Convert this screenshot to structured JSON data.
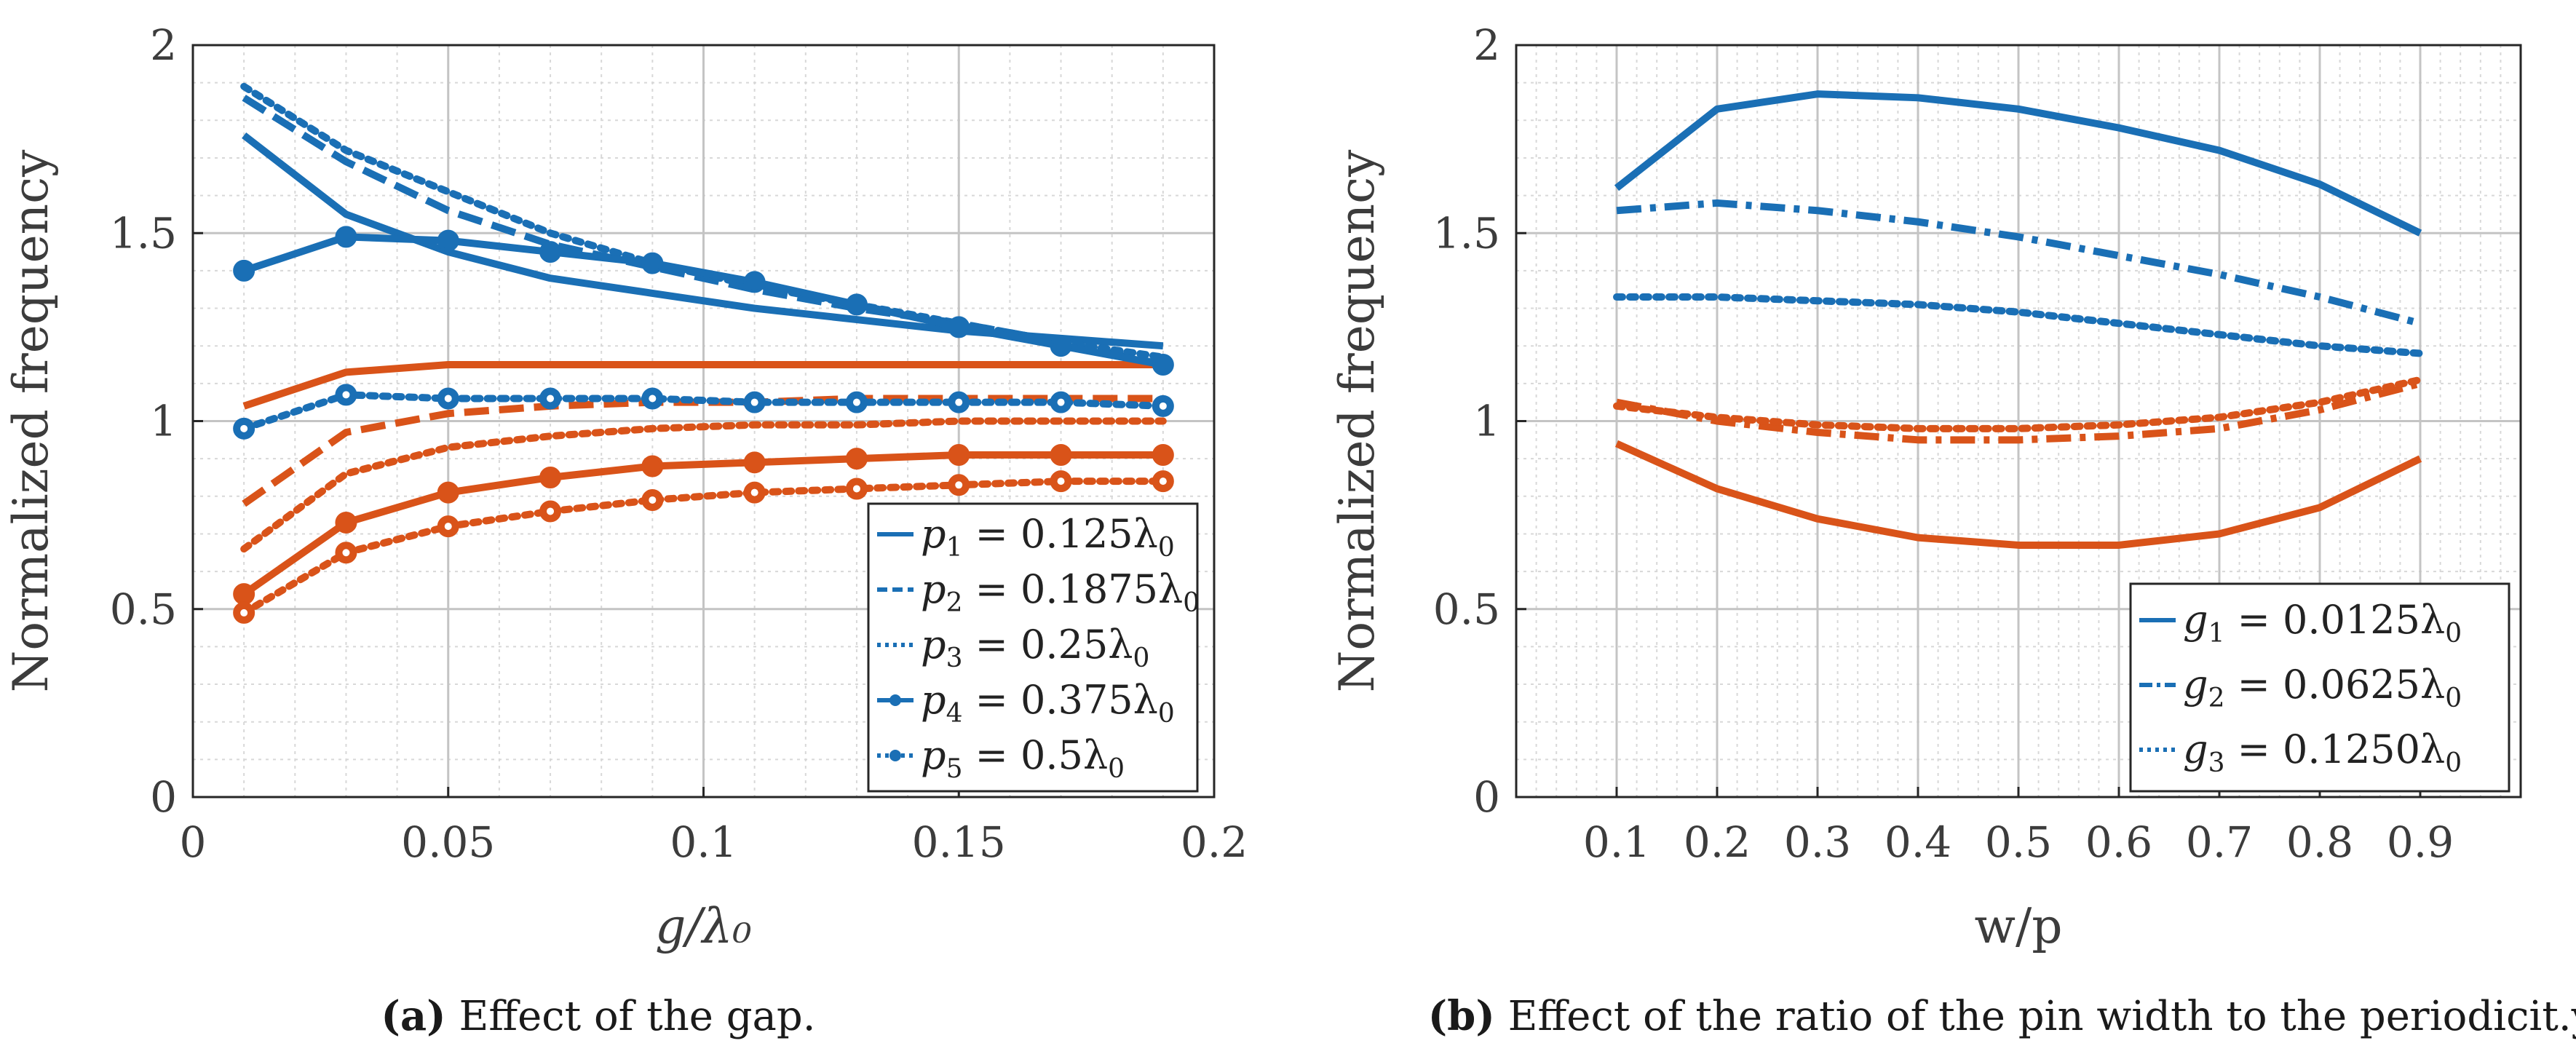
{
  "colors": {
    "blue": "#1a6fb5",
    "orange": "#d95319",
    "grid": "#d8d8d8",
    "axis": "#262626"
  },
  "chart_data": [
    {
      "type": "line",
      "ylabel": "Normalized frequency",
      "xlabel": "g/λ₀",
      "xlim": [
        0,
        0.2
      ],
      "ylim": [
        0,
        2
      ],
      "xticks": [
        0,
        0.05,
        0.1,
        0.15,
        0.2
      ],
      "xtick_labels": [
        "0",
        "0.05",
        "0.1",
        "0.15",
        "0.2"
      ],
      "yticks": [
        0,
        0.5,
        1,
        1.5,
        2
      ],
      "ytick_labels": [
        "0",
        "0.5",
        "1",
        "1.5",
        "2"
      ],
      "grid": true,
      "legend_position": "bottom-right",
      "x": [
        0.01,
        0.03,
        0.05,
        0.07,
        0.09,
        0.11,
        0.13,
        0.15,
        0.17,
        0.19
      ],
      "series": [
        {
          "name": "p1 = 0.125λ0",
          "color": "blue",
          "dash": "solid",
          "marker": false,
          "values": [
            1.76,
            1.55,
            1.45,
            1.38,
            1.34,
            1.3,
            1.27,
            1.24,
            1.22,
            1.2
          ]
        },
        {
          "name": "p1 = 0.125λ0",
          "color": "orange",
          "dash": "solid",
          "marker": false,
          "values": [
            1.04,
            1.13,
            1.15,
            1.15,
            1.15,
            1.15,
            1.15,
            1.15,
            1.15,
            1.15
          ]
        },
        {
          "name": "p2 = 0.1875λ0",
          "color": "blue",
          "dash": "dash",
          "marker": false,
          "values": [
            1.86,
            1.69,
            1.56,
            1.47,
            1.41,
            1.35,
            1.3,
            1.26,
            1.21,
            1.15
          ]
        },
        {
          "name": "p2 = 0.1875λ0",
          "color": "orange",
          "dash": "dash",
          "marker": false,
          "values": [
            0.78,
            0.97,
            1.02,
            1.04,
            1.05,
            1.05,
            1.06,
            1.06,
            1.06,
            1.06
          ]
        },
        {
          "name": "p3 = 0.25λ0",
          "color": "blue",
          "dash": "dot",
          "marker": false,
          "values": [
            1.89,
            1.72,
            1.61,
            1.5,
            1.42,
            1.36,
            1.31,
            1.26,
            1.21,
            1.17
          ]
        },
        {
          "name": "p3 = 0.25λ0",
          "color": "orange",
          "dash": "dot",
          "marker": false,
          "values": [
            0.66,
            0.86,
            0.93,
            0.96,
            0.98,
            0.99,
            0.99,
            1.0,
            1.0,
            1.0
          ]
        },
        {
          "name": "p4 = 0.375λ0",
          "color": "blue",
          "dash": "solid",
          "marker": true,
          "values": [
            1.4,
            1.49,
            1.48,
            1.45,
            1.42,
            1.37,
            1.31,
            1.25,
            1.2,
            1.15
          ]
        },
        {
          "name": "p4 = 0.375λ0",
          "color": "orange",
          "dash": "solid",
          "marker": true,
          "values": [
            0.54,
            0.73,
            0.81,
            0.85,
            0.88,
            0.89,
            0.9,
            0.91,
            0.91,
            0.91
          ]
        },
        {
          "name": "p5 = 0.5λ0",
          "color": "blue",
          "dash": "dot",
          "marker": true,
          "values": [
            0.98,
            1.07,
            1.06,
            1.06,
            1.06,
            1.05,
            1.05,
            1.05,
            1.05,
            1.04
          ]
        },
        {
          "name": "p5 = 0.5λ0",
          "color": "orange",
          "dash": "dot",
          "marker": true,
          "values": [
            0.49,
            0.65,
            0.72,
            0.76,
            0.79,
            0.81,
            0.82,
            0.83,
            0.84,
            0.84
          ]
        }
      ],
      "legend": [
        {
          "sym": "p",
          "sub": "1",
          "rest": " = 0.125λ",
          "sub2": "0",
          "dash": "solid",
          "marker": false
        },
        {
          "sym": "p",
          "sub": "2",
          "rest": " = 0.1875λ",
          "sub2": "0",
          "dash": "dash",
          "marker": false
        },
        {
          "sym": "p",
          "sub": "3",
          "rest": " = 0.25λ",
          "sub2": "0",
          "dash": "dot",
          "marker": false
        },
        {
          "sym": "p",
          "sub": "4",
          "rest": " = 0.375λ",
          "sub2": "0",
          "dash": "solid",
          "marker": true
        },
        {
          "sym": "p",
          "sub": "5",
          "rest": " = 0.5λ",
          "sub2": "0",
          "dash": "dot",
          "marker": true
        }
      ],
      "caption_label": "(a)",
      "caption_text": " Effect of the gap."
    },
    {
      "type": "line",
      "ylabel": "Normalized frequency",
      "xlabel": "w/p",
      "xlim": [
        0,
        1
      ],
      "ylim": [
        0,
        2
      ],
      "xticks": [
        0.1,
        0.2,
        0.3,
        0.4,
        0.5,
        0.6,
        0.7,
        0.8,
        0.9
      ],
      "xtick_labels": [
        "0.1",
        "0.2",
        "0.3",
        "0.4",
        "0.5",
        "0.6",
        "0.7",
        "0.8",
        "0.9"
      ],
      "yticks": [
        0,
        0.5,
        1,
        1.5,
        2
      ],
      "ytick_labels": [
        "0",
        "0.5",
        "1",
        "1.5",
        "2"
      ],
      "grid": true,
      "legend_position": "bottom-right",
      "x": [
        0.1,
        0.2,
        0.3,
        0.4,
        0.5,
        0.6,
        0.7,
        0.8,
        0.9
      ],
      "series": [
        {
          "name": "g1 = 0.0125λ0",
          "color": "blue",
          "dash": "solid",
          "marker": false,
          "values": [
            1.62,
            1.83,
            1.87,
            1.86,
            1.83,
            1.78,
            1.72,
            1.63,
            1.5
          ]
        },
        {
          "name": "g1 = 0.0125λ0",
          "color": "orange",
          "dash": "solid",
          "marker": false,
          "values": [
            0.94,
            0.82,
            0.74,
            0.69,
            0.67,
            0.67,
            0.7,
            0.77,
            0.9
          ]
        },
        {
          "name": "g2 = 0.0625λ0",
          "color": "blue",
          "dash": "dashdot",
          "marker": false,
          "values": [
            1.56,
            1.58,
            1.56,
            1.53,
            1.49,
            1.44,
            1.39,
            1.33,
            1.26
          ]
        },
        {
          "name": "g2 = 0.0625λ0",
          "color": "orange",
          "dash": "dashdot",
          "marker": false,
          "values": [
            1.05,
            1.0,
            0.97,
            0.95,
            0.95,
            0.96,
            0.98,
            1.03,
            1.1
          ]
        },
        {
          "name": "g3 = 0.1250λ0",
          "color": "blue",
          "dash": "dot",
          "marker": false,
          "values": [
            1.33,
            1.33,
            1.32,
            1.31,
            1.29,
            1.26,
            1.23,
            1.2,
            1.18
          ]
        },
        {
          "name": "g3 = 0.1250λ0",
          "color": "orange",
          "dash": "dot",
          "marker": false,
          "values": [
            1.04,
            1.01,
            0.99,
            0.98,
            0.98,
            0.99,
            1.01,
            1.05,
            1.11
          ]
        }
      ],
      "legend": [
        {
          "sym": "g",
          "sub": "1",
          "rest": " = 0.0125λ",
          "sub2": "0",
          "dash": "solid",
          "marker": false
        },
        {
          "sym": "g",
          "sub": "2",
          "rest": " = 0.0625λ",
          "sub2": "0",
          "dash": "dashdot",
          "marker": false
        },
        {
          "sym": "g",
          "sub": "3",
          "rest": " = 0.1250λ",
          "sub2": "0",
          "dash": "dot",
          "marker": false
        }
      ],
      "caption_label": "(b)",
      "caption_text": " Effect of the ratio of the pin width to the periodicit.y"
    }
  ]
}
